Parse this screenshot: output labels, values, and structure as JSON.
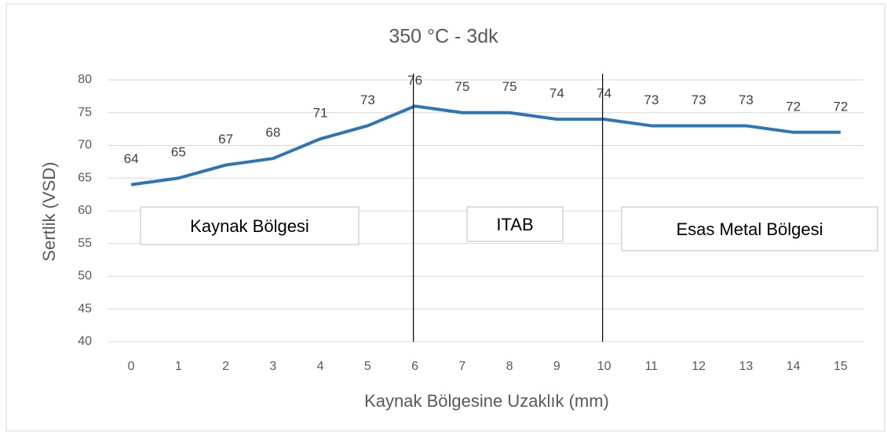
{
  "chart_data": {
    "type": "line",
    "title": "350 °C - 3dk",
    "x_label": "Kaynak Bölgesine Uzaklık (mm)",
    "y_label": "Sertlik (VSD)",
    "categories": [
      "0",
      "1",
      "2",
      "3",
      "4",
      "5",
      "6",
      "7",
      "8",
      "9",
      "10",
      "11",
      "12",
      "13",
      "14",
      "15"
    ],
    "series": [
      {
        "name": "Sertlik",
        "color": "#2e75b6",
        "values": [
          64,
          65,
          67,
          68,
          71,
          73,
          76,
          75,
          75,
          74,
          74,
          73,
          73,
          73,
          72,
          72
        ]
      }
    ],
    "ylim": [
      40,
      80
    ],
    "yticks": [
      40,
      45,
      50,
      55,
      60,
      65,
      70,
      75,
      80
    ],
    "grid": true,
    "legend": false,
    "data_labels": true,
    "dividers": [
      6,
      10
    ],
    "annotations": [
      "Kaynak Bölgesi",
      "ITAB",
      "Esas Metal Bölgesi"
    ]
  }
}
